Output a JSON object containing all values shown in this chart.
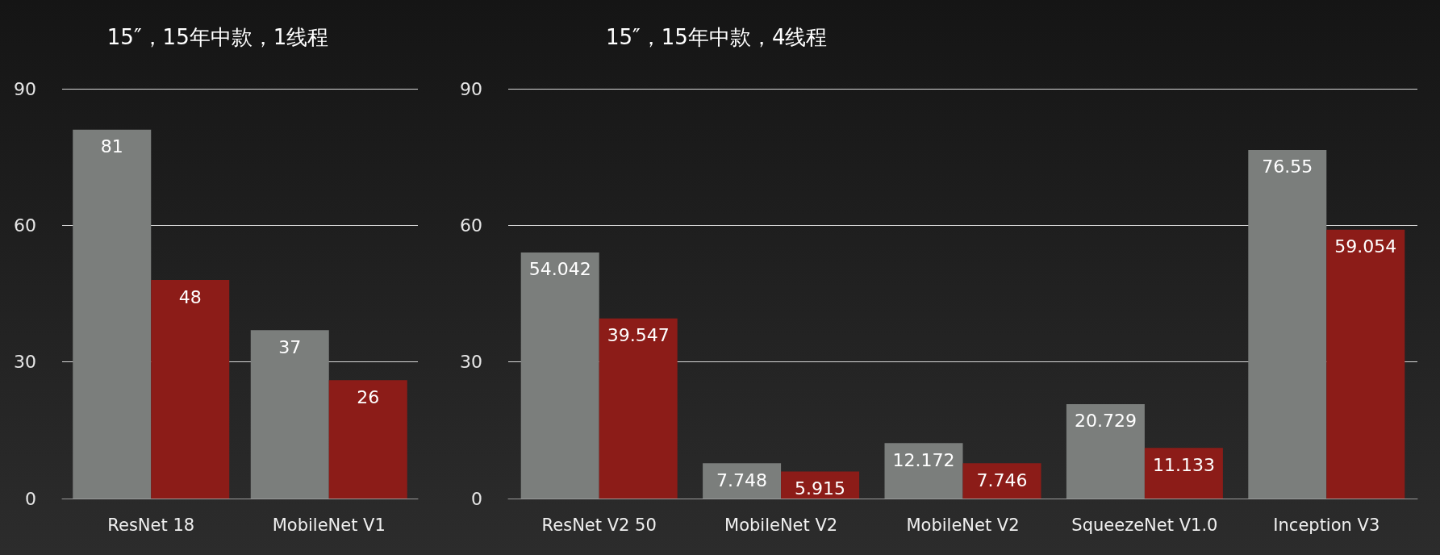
{
  "chart_data": [
    {
      "type": "bar",
      "title": "15″，15年中款，1线程",
      "categories": [
        "ResNet 18",
        "MobileNet V1"
      ],
      "series": [
        {
          "color": "#7b7e7c",
          "values": [
            81,
            37
          ]
        },
        {
          "color": "#8c1c18",
          "values": [
            48,
            26
          ]
        }
      ],
      "ylim": [
        0,
        90
      ],
      "yticks": [
        0,
        30,
        60,
        90
      ],
      "grid": "y",
      "data_labels": true
    },
    {
      "type": "bar",
      "title": "15″，15年中款，4线程",
      "categories": [
        "ResNet V2 50",
        "MobileNet V2",
        "MobileNet V2",
        "SqueezeNet V1.0",
        "Inception V3"
      ],
      "series": [
        {
          "color": "#7b7e7c",
          "values": [
            54.042,
            7.748,
            12.172,
            20.729,
            76.55
          ]
        },
        {
          "color": "#8c1c18",
          "values": [
            39.547,
            5.915,
            7.746,
            11.133,
            59.054
          ]
        }
      ],
      "ylim": [
        0,
        90
      ],
      "yticks": [
        0,
        30,
        60,
        90
      ],
      "grid": "y",
      "data_labels": true
    }
  ]
}
